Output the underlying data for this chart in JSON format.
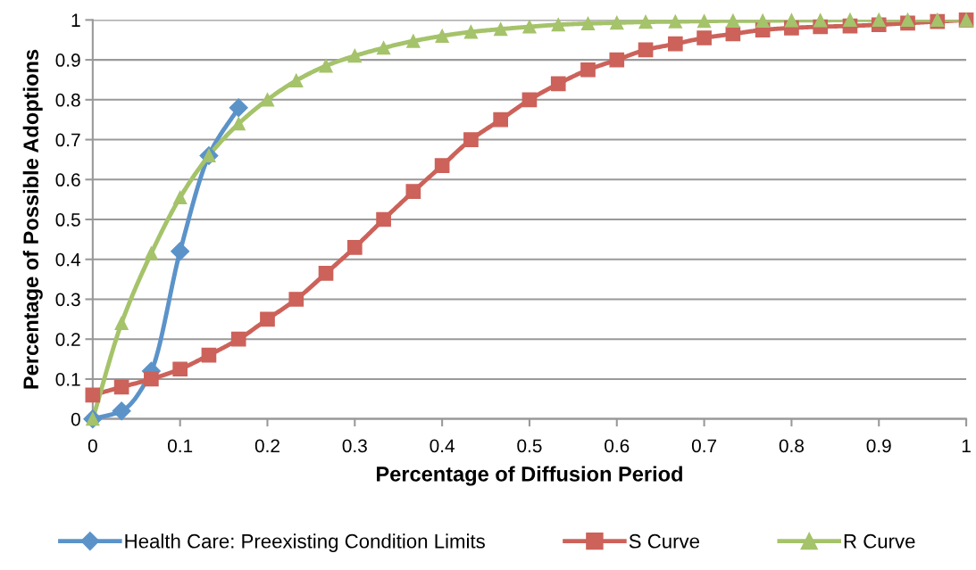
{
  "chart_data": {
    "type": "line",
    "xlabel": "Percentage of Diffusion Period",
    "ylabel": "Percentage of Possible Adoptions",
    "x": [
      0,
      0.033,
      0.067,
      0.1,
      0.133,
      0.167,
      0.2,
      0.233,
      0.267,
      0.3,
      0.333,
      0.367,
      0.4,
      0.433,
      0.467,
      0.5,
      0.533,
      0.567,
      0.6,
      0.633,
      0.667,
      0.7,
      0.733,
      0.767,
      0.8,
      0.833,
      0.867,
      0.9,
      0.933,
      0.967,
      1
    ],
    "series": [
      {
        "name": "Health Care: Preexisting Condition Limits",
        "color": "#5b93c9",
        "marker": "diamond",
        "x": [
          0,
          0.033,
          0.067,
          0.1,
          0.133,
          0.167
        ],
        "values": [
          0.0,
          0.02,
          0.12,
          0.42,
          0.66,
          0.78
        ]
      },
      {
        "name": "S Curve",
        "color": "#cc625a",
        "marker": "square",
        "values": [
          0.06,
          0.08,
          0.1,
          0.125,
          0.16,
          0.2,
          0.25,
          0.3,
          0.365,
          0.43,
          0.5,
          0.57,
          0.635,
          0.7,
          0.75,
          0.8,
          0.84,
          0.875,
          0.9,
          0.925,
          0.94,
          0.955,
          0.965,
          0.975,
          0.98,
          0.983,
          0.985,
          0.988,
          0.992,
          0.996,
          1.0
        ]
      },
      {
        "name": "R Curve",
        "color": "#a5c36a",
        "marker": "triangle",
        "values": [
          0.0,
          0.24,
          0.415,
          0.555,
          0.66,
          0.74,
          0.8,
          0.848,
          0.885,
          0.91,
          0.93,
          0.947,
          0.96,
          0.97,
          0.977,
          0.983,
          0.988,
          0.991,
          0.993,
          0.995,
          0.996,
          0.997,
          0.998,
          0.998,
          0.999,
          0.999,
          1.0,
          1.0,
          1.0,
          1.0,
          1.0
        ]
      }
    ],
    "xlim": [
      0,
      1
    ],
    "xticks": [
      0,
      0.1,
      0.2,
      0.3,
      0.4,
      0.5,
      0.6,
      0.7,
      0.8,
      0.9,
      1
    ],
    "ylim": [
      0,
      1
    ],
    "yticks": [
      0,
      0.1,
      0.2,
      0.3,
      0.4,
      0.5,
      0.6,
      0.7,
      0.8,
      0.9,
      1
    ],
    "grid": "y",
    "legend": "bottom",
    "line_style": "solid"
  }
}
